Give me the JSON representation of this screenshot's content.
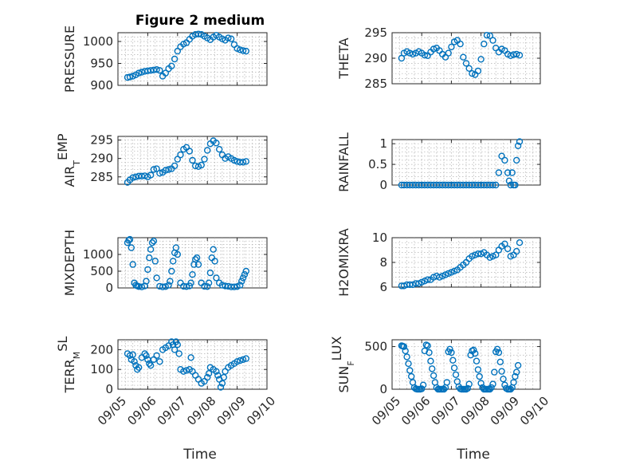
{
  "figure": {
    "title": "Figure 2 medium",
    "xlabel": "Time",
    "marker_color": "#0072bd"
  },
  "chart_data": [
    {
      "type": "scatter",
      "name": "pressure",
      "ylabel": "PRESSURE",
      "xlim": [
        5.0,
        10.0
      ],
      "ylim": [
        900,
        1020
      ],
      "xticks": [
        5,
        6,
        7,
        8,
        9,
        10
      ],
      "xticklabels": [
        "09/05",
        "09/06",
        "09/07",
        "09/08",
        "09/09",
        "09/10"
      ],
      "show_xticklabels": false,
      "yticks": [
        900,
        950,
        1000
      ],
      "yticklabels": [
        "900",
        "950",
        "1000"
      ],
      "grid": true,
      "x": [
        5.32,
        5.4,
        5.5,
        5.6,
        5.7,
        5.8,
        5.9,
        6.0,
        6.1,
        6.2,
        6.3,
        6.4,
        6.5,
        6.6,
        6.7,
        6.8,
        6.9,
        7.0,
        7.1,
        7.2,
        7.3,
        7.4,
        7.5,
        7.6,
        7.7,
        7.8,
        7.9,
        8.0,
        8.1,
        8.2,
        8.3,
        8.4,
        8.5,
        8.6,
        8.7,
        8.8,
        8.9,
        9.0,
        9.1,
        9.2,
        9.3
      ],
      "y": [
        918,
        919,
        921,
        924,
        928,
        930,
        932,
        933,
        934,
        935,
        936,
        934,
        921,
        928,
        938,
        944,
        960,
        978,
        988,
        994,
        997,
        1005,
        1012,
        1016,
        1017,
        1016,
        1012,
        1008,
        1004,
        1010,
        1014,
        1010,
        1006,
        1003,
        1008,
        1006,
        993,
        984,
        981,
        979,
        978
      ]
    },
    {
      "type": "scatter",
      "name": "theta",
      "ylabel": "THETA",
      "xlim": [
        5.0,
        10.0
      ],
      "ylim": [
        285,
        295
      ],
      "xticks": [
        5,
        6,
        7,
        8,
        9,
        10
      ],
      "xticklabels": [
        "09/05",
        "09/06",
        "09/07",
        "09/08",
        "09/09",
        "09/10"
      ],
      "show_xticklabels": false,
      "yticks": [
        285,
        290,
        295
      ],
      "yticklabels": [
        "285",
        "290",
        "295"
      ],
      "grid": true,
      "x": [
        5.32,
        5.4,
        5.5,
        5.6,
        5.7,
        5.8,
        5.9,
        6.0,
        6.1,
        6.2,
        6.3,
        6.4,
        6.5,
        6.6,
        6.7,
        6.8,
        6.9,
        7.0,
        7.1,
        7.2,
        7.3,
        7.4,
        7.5,
        7.6,
        7.7,
        7.8,
        7.9,
        8.0,
        8.1,
        8.2,
        8.3,
        8.4,
        8.5,
        8.6,
        8.7,
        8.8,
        8.9,
        9.0,
        9.1,
        9.2,
        9.3
      ],
      "y": [
        290.0,
        291.0,
        291.3,
        291.0,
        290.8,
        291.0,
        291.3,
        291.0,
        290.6,
        290.5,
        291.2,
        291.8,
        292.0,
        291.5,
        290.8,
        290.2,
        291.0,
        292.2,
        293.2,
        293.5,
        292.8,
        290.2,
        289.0,
        288.0,
        287.0,
        286.8,
        287.5,
        289.8,
        292.8,
        294.5,
        294.4,
        293.5,
        292.0,
        291.2,
        291.8,
        291.5,
        290.8,
        290.5,
        290.7,
        290.8,
        290.6
      ]
    },
    {
      "type": "scatter",
      "name": "air_temp",
      "ylabel": "AIR_TEMP",
      "xlim": [
        5.0,
        10.0
      ],
      "ylim": [
        283,
        296
      ],
      "xticks": [
        5,
        6,
        7,
        8,
        9,
        10
      ],
      "xticklabels": [
        "09/05",
        "09/06",
        "09/07",
        "09/08",
        "09/09",
        "09/10"
      ],
      "show_xticklabels": false,
      "yticks": [
        285,
        290,
        295
      ],
      "yticklabels": [
        "285",
        "290",
        "295"
      ],
      "grid": true,
      "x": [
        5.32,
        5.4,
        5.5,
        5.6,
        5.7,
        5.8,
        5.9,
        6.0,
        6.1,
        6.2,
        6.3,
        6.4,
        6.5,
        6.6,
        6.7,
        6.8,
        6.9,
        7.0,
        7.1,
        7.2,
        7.3,
        7.4,
        7.5,
        7.6,
        7.7,
        7.8,
        7.9,
        8.0,
        8.1,
        8.2,
        8.3,
        8.4,
        8.5,
        8.6,
        8.7,
        8.8,
        8.9,
        9.0,
        9.1,
        9.2,
        9.3
      ],
      "y": [
        283.5,
        284.2,
        284.8,
        285.0,
        285.2,
        285.2,
        285.3,
        285.0,
        285.5,
        287.0,
        287.2,
        286.0,
        286.2,
        286.8,
        287.0,
        287.2,
        288.0,
        289.8,
        291.0,
        292.5,
        293.0,
        292.0,
        289.5,
        288.0,
        287.8,
        288.2,
        289.8,
        292.2,
        294.0,
        294.8,
        294.2,
        292.5,
        291.0,
        290.0,
        290.5,
        290.0,
        289.5,
        289.2,
        289.0,
        289.0,
        289.2
      ]
    },
    {
      "type": "scatter",
      "name": "rainfall",
      "ylabel": "RAINFALL",
      "xlim": [
        5.0,
        10.0
      ],
      "ylim": [
        0,
        1.1
      ],
      "xticks": [
        5,
        6,
        7,
        8,
        9,
        10
      ],
      "xticklabels": [
        "09/05",
        "09/06",
        "09/07",
        "09/08",
        "09/09",
        "09/10"
      ],
      "show_xticklabels": false,
      "yticks": [
        0,
        0.5,
        1
      ],
      "yticklabels": [
        "0",
        "0.5",
        "1"
      ],
      "grid": true,
      "x": [
        5.32,
        5.4,
        5.5,
        5.6,
        5.7,
        5.8,
        5.9,
        6.0,
        6.1,
        6.2,
        6.3,
        6.4,
        6.5,
        6.6,
        6.7,
        6.8,
        6.9,
        7.0,
        7.1,
        7.2,
        7.3,
        7.4,
        7.5,
        7.6,
        7.7,
        7.8,
        7.9,
        8.0,
        8.1,
        8.2,
        8.3,
        8.4,
        8.5,
        8.6,
        8.7,
        8.8,
        8.9,
        8.95,
        9.0,
        9.05,
        9.1,
        9.15,
        9.2,
        9.25,
        9.3
      ],
      "y": [
        0,
        0,
        0,
        0,
        0,
        0,
        0,
        0,
        0,
        0,
        0,
        0,
        0,
        0,
        0,
        0,
        0,
        0,
        0,
        0,
        0,
        0,
        0,
        0,
        0,
        0,
        0,
        0,
        0,
        0,
        0,
        0,
        0,
        0.3,
        0.7,
        0.6,
        0.3,
        0.1,
        0,
        0.3,
        0,
        0,
        0.6,
        0.95,
        1.05
      ]
    },
    {
      "type": "scatter",
      "name": "mixdepth",
      "ylabel": "MIXDEPTH",
      "xlim": [
        5.0,
        10.0
      ],
      "ylim": [
        0,
        1500
      ],
      "xticks": [
        5,
        6,
        7,
        8,
        9,
        10
      ],
      "xticklabels": [
        "09/05",
        "09/06",
        "09/07",
        "09/08",
        "09/09",
        "09/10"
      ],
      "show_xticklabels": false,
      "yticks": [
        0,
        500,
        1000
      ],
      "yticklabels": [
        "0",
        "500",
        "1000"
      ],
      "grid": true,
      "x": [
        5.32,
        5.36,
        5.4,
        5.45,
        5.5,
        5.55,
        5.6,
        5.65,
        5.7,
        5.8,
        5.9,
        5.95,
        6.0,
        6.05,
        6.1,
        6.15,
        6.2,
        6.25,
        6.3,
        6.4,
        6.5,
        6.6,
        6.7,
        6.75,
        6.8,
        6.85,
        6.9,
        6.95,
        7.0,
        7.1,
        7.2,
        7.3,
        7.4,
        7.45,
        7.5,
        7.55,
        7.6,
        7.65,
        7.7,
        7.8,
        7.9,
        8.0,
        8.05,
        8.1,
        8.15,
        8.2,
        8.25,
        8.3,
        8.4,
        8.5,
        8.6,
        8.7,
        8.8,
        8.9,
        9.0,
        9.1,
        9.15,
        9.2,
        9.25,
        9.3
      ],
      "y": [
        1350,
        1420,
        1450,
        1200,
        700,
        150,
        80,
        60,
        40,
        30,
        60,
        200,
        550,
        900,
        1150,
        1350,
        1400,
        800,
        300,
        50,
        30,
        40,
        80,
        200,
        500,
        800,
        1050,
        1200,
        1000,
        150,
        50,
        40,
        60,
        150,
        400,
        700,
        850,
        900,
        700,
        150,
        50,
        40,
        150,
        450,
        900,
        1150,
        800,
        300,
        150,
        80,
        60,
        50,
        30,
        30,
        40,
        80,
        200,
        300,
        400,
        500
      ]
    },
    {
      "type": "scatter",
      "name": "h2omixra",
      "ylabel": "H2OMIXRA",
      "xlim": [
        5.0,
        10.0
      ],
      "ylim": [
        6,
        10
      ],
      "xticks": [
        5,
        6,
        7,
        8,
        9,
        10
      ],
      "xticklabels": [
        "09/05",
        "09/06",
        "09/07",
        "09/08",
        "09/09",
        "09/10"
      ],
      "show_xticklabels": false,
      "yticks": [
        6,
        8,
        10
      ],
      "yticklabels": [
        "6",
        "8",
        "10"
      ],
      "grid": true,
      "x": [
        5.32,
        5.4,
        5.5,
        5.6,
        5.7,
        5.8,
        5.9,
        6.0,
        6.1,
        6.2,
        6.3,
        6.4,
        6.5,
        6.6,
        6.7,
        6.8,
        6.9,
        7.0,
        7.1,
        7.2,
        7.3,
        7.4,
        7.5,
        7.6,
        7.7,
        7.8,
        7.9,
        8.0,
        8.1,
        8.2,
        8.3,
        8.4,
        8.5,
        8.6,
        8.7,
        8.8,
        8.9,
        9.0,
        9.1,
        9.2,
        9.3
      ],
      "y": [
        6.1,
        6.1,
        6.2,
        6.2,
        6.2,
        6.3,
        6.3,
        6.4,
        6.5,
        6.6,
        6.6,
        6.8,
        6.9,
        6.8,
        6.9,
        7.0,
        7.1,
        7.2,
        7.3,
        7.4,
        7.6,
        7.8,
        8.0,
        8.3,
        8.5,
        8.6,
        8.7,
        8.7,
        8.8,
        8.6,
        8.4,
        8.5,
        8.6,
        9.0,
        9.3,
        9.5,
        9.1,
        8.5,
        8.6,
        8.9,
        9.6
      ]
    },
    {
      "type": "scatter",
      "name": "terr_msl",
      "ylabel": "TERR_MSL",
      "xlim": [
        5.0,
        10.0
      ],
      "ylim": [
        0,
        250
      ],
      "xticks": [
        5,
        6,
        7,
        8,
        9,
        10
      ],
      "xticklabels": [
        "09/05",
        "09/06",
        "09/07",
        "09/08",
        "09/09",
        "09/10"
      ],
      "show_xticklabels": true,
      "yticks": [
        0,
        100,
        200
      ],
      "yticklabels": [
        "0",
        "100",
        "200"
      ],
      "grid": true,
      "x": [
        5.32,
        5.4,
        5.45,
        5.5,
        5.55,
        5.6,
        5.65,
        5.7,
        5.8,
        5.9,
        5.95,
        6.0,
        6.05,
        6.1,
        6.2,
        6.3,
        6.4,
        6.5,
        6.6,
        6.7,
        6.8,
        6.85,
        6.9,
        6.95,
        7.0,
        7.05,
        7.1,
        7.2,
        7.3,
        7.4,
        7.45,
        7.5,
        7.6,
        7.7,
        7.8,
        7.9,
        8.0,
        8.05,
        8.1,
        8.2,
        8.3,
        8.35,
        8.4,
        8.45,
        8.5,
        8.55,
        8.6,
        8.7,
        8.8,
        8.9,
        9.0,
        9.1,
        9.2,
        9.3
      ],
      "y": [
        180,
        170,
        150,
        175,
        140,
        120,
        100,
        110,
        160,
        180,
        170,
        150,
        130,
        120,
        150,
        170,
        140,
        200,
        210,
        220,
        240,
        225,
        200,
        240,
        225,
        180,
        100,
        90,
        95,
        100,
        160,
        90,
        70,
        50,
        30,
        40,
        60,
        80,
        110,
        100,
        90,
        70,
        50,
        10,
        30,
        60,
        90,
        110,
        120,
        130,
        140,
        145,
        150,
        155
      ]
    },
    {
      "type": "scatter",
      "name": "sun_flux",
      "ylabel": "SUN_FLUX",
      "xlim": [
        5.0,
        10.0
      ],
      "ylim": [
        0,
        580
      ],
      "xticks": [
        5,
        6,
        7,
        8,
        9,
        10
      ],
      "xticklabels": [
        "09/05",
        "09/06",
        "09/07",
        "09/08",
        "09/09",
        "09/10"
      ],
      "show_xticklabels": true,
      "yticks": [
        0,
        500
      ],
      "yticklabels": [
        "0",
        "500"
      ],
      "grid": true,
      "x": [
        5.32,
        5.36,
        5.4,
        5.45,
        5.5,
        5.55,
        5.6,
        5.65,
        5.7,
        5.75,
        5.8,
        5.85,
        5.9,
        5.95,
        6.0,
        6.05,
        6.1,
        6.15,
        6.2,
        6.25,
        6.3,
        6.35,
        6.4,
        6.45,
        6.5,
        6.55,
        6.6,
        6.65,
        6.7,
        6.75,
        6.8,
        6.85,
        6.9,
        6.95,
        7.0,
        7.05,
        7.1,
        7.15,
        7.2,
        7.25,
        7.3,
        7.35,
        7.4,
        7.45,
        7.5,
        7.55,
        7.6,
        7.65,
        7.7,
        7.75,
        7.8,
        7.85,
        7.9,
        7.95,
        8.0,
        8.05,
        8.1,
        8.15,
        8.2,
        8.25,
        8.3,
        8.35,
        8.4,
        8.45,
        8.5,
        8.55,
        8.6,
        8.65,
        8.7,
        8.75,
        8.8,
        8.85,
        8.9,
        8.95,
        9.0,
        9.05,
        9.1,
        9.15,
        9.2,
        9.25
      ],
      "y": [
        510,
        505,
        500,
        450,
        380,
        300,
        220,
        150,
        80,
        20,
        5,
        0,
        0,
        0,
        5,
        50,
        450,
        520,
        510,
        430,
        330,
        240,
        160,
        80,
        20,
        0,
        0,
        0,
        0,
        0,
        20,
        80,
        440,
        470,
        430,
        340,
        250,
        170,
        90,
        30,
        5,
        0,
        0,
        0,
        0,
        10,
        60,
        400,
        450,
        460,
        420,
        330,
        230,
        150,
        70,
        20,
        0,
        0,
        0,
        0,
        0,
        20,
        60,
        200,
        440,
        470,
        430,
        320,
        210,
        120,
        50,
        10,
        0,
        0,
        0,
        20,
        80,
        150,
        200,
        280
      ]
    }
  ]
}
